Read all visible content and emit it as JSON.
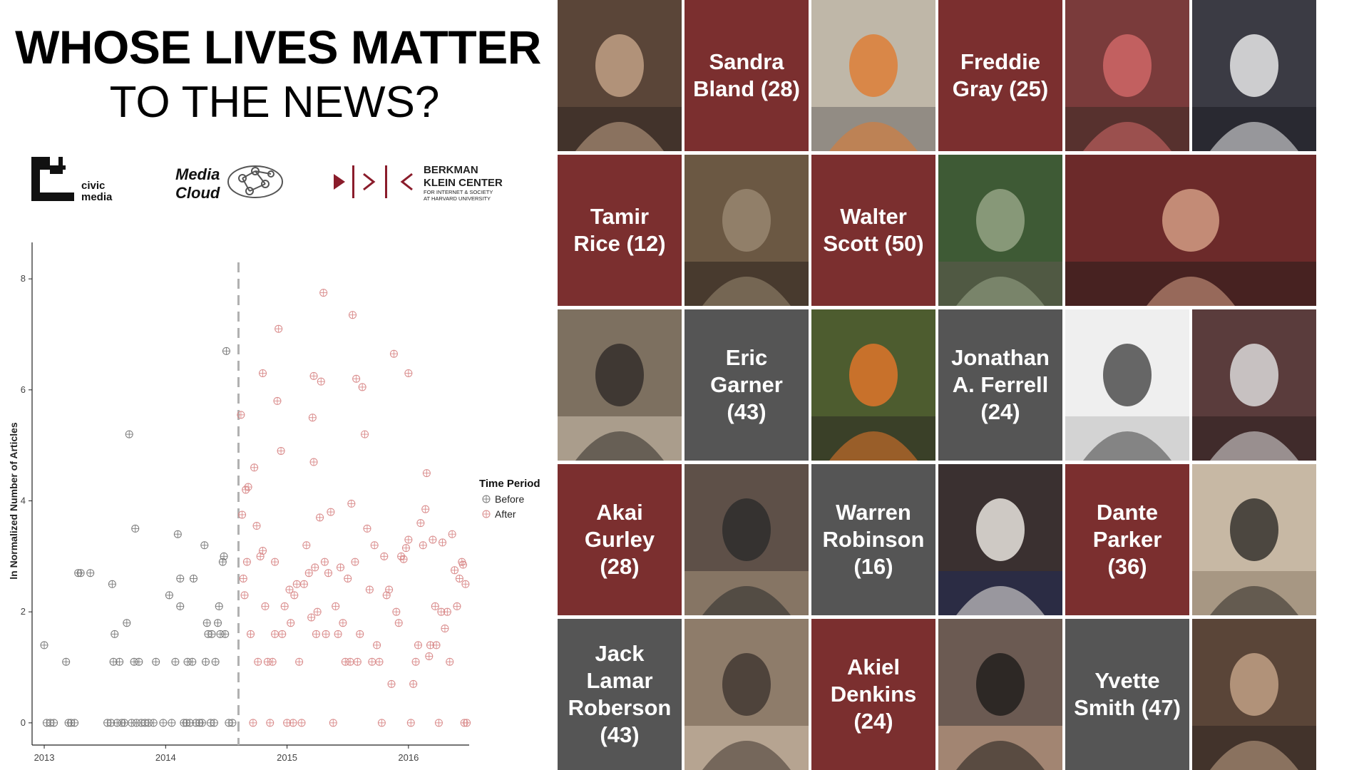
{
  "title": {
    "line1": "WHOSE LIVES MATTER",
    "line2": "TO THE NEWS?"
  },
  "logos": {
    "civic": {
      "line1": "civic",
      "line2": "media"
    },
    "mediacloud": {
      "line1": "Media",
      "line2": "Cloud"
    },
    "berkman": {
      "line1": "BERKMAN",
      "line2": "KLEIN CENTER",
      "line3": "FOR INTERNET & SOCIETY",
      "line4": "AT HARVARD UNIVERSITY"
    }
  },
  "colors": {
    "before": "#7a7a7a",
    "after": "#d98a8a",
    "maroon": "#7b2f2f",
    "gray": "#555555",
    "dashed": "#b0b0b0"
  },
  "chart_data": {
    "type": "scatter",
    "ylabel": "ln Normalized Number of Articles",
    "xlabel": "",
    "x_ticks": [
      "2013",
      "2014",
      "2015",
      "2016"
    ],
    "y_ticks": [
      "0",
      "2",
      "4",
      "6",
      "8"
    ],
    "xlim": [
      2012.9,
      2016.5
    ],
    "ylim": [
      -0.4,
      8.4
    ],
    "divider_x": 2014.6,
    "legend": {
      "title": "Time Period",
      "entries": [
        "Before",
        "After"
      ],
      "position": "right"
    },
    "series": [
      {
        "name": "Before",
        "color": "#7a7a7a",
        "points": [
          [
            2013.0,
            1.4
          ],
          [
            2013.02,
            0
          ],
          [
            2013.05,
            0
          ],
          [
            2013.08,
            0
          ],
          [
            2013.18,
            1.1
          ],
          [
            2013.2,
            0
          ],
          [
            2013.22,
            0
          ],
          [
            2013.25,
            0
          ],
          [
            2013.28,
            2.7
          ],
          [
            2013.3,
            2.7
          ],
          [
            2013.38,
            2.7
          ],
          [
            2013.52,
            0
          ],
          [
            2013.55,
            0
          ],
          [
            2013.56,
            2.5
          ],
          [
            2013.57,
            1.1
          ],
          [
            2013.58,
            1.6
          ],
          [
            2013.6,
            0
          ],
          [
            2013.62,
            1.1
          ],
          [
            2013.64,
            0
          ],
          [
            2013.66,
            0
          ],
          [
            2013.68,
            1.8
          ],
          [
            2013.7,
            5.2
          ],
          [
            2013.72,
            0
          ],
          [
            2013.74,
            1.1
          ],
          [
            2013.75,
            3.5
          ],
          [
            2013.76,
            0
          ],
          [
            2013.78,
            1.1
          ],
          [
            2013.8,
            0
          ],
          [
            2013.83,
            0
          ],
          [
            2013.86,
            0
          ],
          [
            2013.9,
            0
          ],
          [
            2013.92,
            1.1
          ],
          [
            2013.98,
            0
          ],
          [
            2014.03,
            2.3
          ],
          [
            2014.05,
            0
          ],
          [
            2014.08,
            1.1
          ],
          [
            2014.1,
            3.4
          ],
          [
            2014.12,
            2.1
          ],
          [
            2014.12,
            2.6
          ],
          [
            2014.15,
            0
          ],
          [
            2014.17,
            0
          ],
          [
            2014.18,
            1.1
          ],
          [
            2014.2,
            0
          ],
          [
            2014.22,
            1.1
          ],
          [
            2014.23,
            2.6
          ],
          [
            2014.25,
            0
          ],
          [
            2014.28,
            0
          ],
          [
            2014.3,
            0
          ],
          [
            2014.32,
            3.2
          ],
          [
            2014.33,
            1.1
          ],
          [
            2014.34,
            1.8
          ],
          [
            2014.35,
            1.6
          ],
          [
            2014.37,
            0
          ],
          [
            2014.38,
            1.6
          ],
          [
            2014.4,
            0
          ],
          [
            2014.41,
            1.1
          ],
          [
            2014.43,
            1.8
          ],
          [
            2014.44,
            2.1
          ],
          [
            2014.45,
            1.6
          ],
          [
            2014.47,
            2.9
          ],
          [
            2014.48,
            3.0
          ],
          [
            2014.49,
            1.6
          ],
          [
            2014.5,
            6.7
          ],
          [
            2014.52,
            0
          ],
          [
            2014.55,
            0
          ]
        ]
      },
      {
        "name": "After",
        "color": "#d98a8a",
        "points": [
          [
            2014.62,
            5.55
          ],
          [
            2014.63,
            3.75
          ],
          [
            2014.64,
            2.6
          ],
          [
            2014.65,
            2.3
          ],
          [
            2014.66,
            4.2
          ],
          [
            2014.67,
            2.9
          ],
          [
            2014.68,
            4.25
          ],
          [
            2014.7,
            1.6
          ],
          [
            2014.72,
            0
          ],
          [
            2014.73,
            4.6
          ],
          [
            2014.75,
            3.55
          ],
          [
            2014.76,
            1.1
          ],
          [
            2014.78,
            3.0
          ],
          [
            2014.8,
            3.1
          ],
          [
            2014.8,
            6.3
          ],
          [
            2014.82,
            2.1
          ],
          [
            2014.84,
            1.1
          ],
          [
            2014.86,
            0
          ],
          [
            2014.88,
            1.1
          ],
          [
            2014.9,
            1.6
          ],
          [
            2014.9,
            2.9
          ],
          [
            2014.92,
            5.8
          ],
          [
            2014.93,
            7.1
          ],
          [
            2014.95,
            4.9
          ],
          [
            2014.96,
            1.6
          ],
          [
            2014.98,
            2.1
          ],
          [
            2015.0,
            0
          ],
          [
            2015.02,
            2.4
          ],
          [
            2015.03,
            1.8
          ],
          [
            2015.05,
            0
          ],
          [
            2015.06,
            2.3
          ],
          [
            2015.08,
            2.5
          ],
          [
            2015.1,
            1.1
          ],
          [
            2015.12,
            0
          ],
          [
            2015.14,
            2.5
          ],
          [
            2015.16,
            3.2
          ],
          [
            2015.18,
            2.7
          ],
          [
            2015.2,
            1.9
          ],
          [
            2015.21,
            5.5
          ],
          [
            2015.22,
            6.25
          ],
          [
            2015.22,
            4.7
          ],
          [
            2015.23,
            2.8
          ],
          [
            2015.24,
            1.6
          ],
          [
            2015.25,
            2.0
          ],
          [
            2015.27,
            3.7
          ],
          [
            2015.28,
            6.15
          ],
          [
            2015.3,
            7.75
          ],
          [
            2015.31,
            2.9
          ],
          [
            2015.32,
            1.6
          ],
          [
            2015.34,
            2.7
          ],
          [
            2015.36,
            3.8
          ],
          [
            2015.38,
            0
          ],
          [
            2015.4,
            2.1
          ],
          [
            2015.42,
            1.6
          ],
          [
            2015.44,
            2.8
          ],
          [
            2015.46,
            1.8
          ],
          [
            2015.48,
            1.1
          ],
          [
            2015.5,
            2.6
          ],
          [
            2015.52,
            1.1
          ],
          [
            2015.53,
            3.95
          ],
          [
            2015.54,
            7.35
          ],
          [
            2015.56,
            2.9
          ],
          [
            2015.57,
            6.2
          ],
          [
            2015.58,
            1.1
          ],
          [
            2015.6,
            1.6
          ],
          [
            2015.62,
            6.05
          ],
          [
            2015.64,
            5.2
          ],
          [
            2015.66,
            3.5
          ],
          [
            2015.68,
            2.4
          ],
          [
            2015.7,
            1.1
          ],
          [
            2015.72,
            3.2
          ],
          [
            2015.74,
            1.4
          ],
          [
            2015.76,
            1.1
          ],
          [
            2015.78,
            0
          ],
          [
            2015.8,
            3.0
          ],
          [
            2015.82,
            2.3
          ],
          [
            2015.84,
            2.4
          ],
          [
            2015.86,
            0.7
          ],
          [
            2015.88,
            6.65
          ],
          [
            2015.9,
            2.0
          ],
          [
            2015.92,
            1.8
          ],
          [
            2015.94,
            3.0
          ],
          [
            2015.96,
            2.95
          ],
          [
            2015.98,
            3.15
          ],
          [
            2016.0,
            3.3
          ],
          [
            2016.0,
            6.3
          ],
          [
            2016.02,
            0
          ],
          [
            2016.04,
            0.7
          ],
          [
            2016.06,
            1.1
          ],
          [
            2016.08,
            1.4
          ],
          [
            2016.1,
            3.6
          ],
          [
            2016.12,
            3.2
          ],
          [
            2016.14,
            3.85
          ],
          [
            2016.15,
            4.5
          ],
          [
            2016.17,
            1.2
          ],
          [
            2016.18,
            1.4
          ],
          [
            2016.2,
            3.3
          ],
          [
            2016.22,
            2.1
          ],
          [
            2016.23,
            1.4
          ],
          [
            2016.25,
            0
          ],
          [
            2016.27,
            2.0
          ],
          [
            2016.28,
            3.25
          ],
          [
            2016.3,
            1.7
          ],
          [
            2016.32,
            2.0
          ],
          [
            2016.34,
            1.1
          ],
          [
            2016.36,
            3.4
          ],
          [
            2016.38,
            2.75
          ],
          [
            2016.4,
            2.1
          ],
          [
            2016.42,
            2.6
          ],
          [
            2016.44,
            2.9
          ],
          [
            2016.45,
            2.85
          ],
          [
            2016.46,
            0
          ],
          [
            2016.47,
            2.5
          ],
          [
            2016.48,
            0
          ]
        ]
      }
    ]
  },
  "tiles": [
    {
      "kind": "photo",
      "icon": "portrait-sandra-bland-photo"
    },
    {
      "kind": "name",
      "text": "Sandra\nBland (28)",
      "color": "maroon"
    },
    {
      "kind": "photo",
      "icon": "jail-hallway-photo"
    },
    {
      "kind": "name",
      "text": "Freddie\nGray (25)",
      "color": "maroon"
    },
    {
      "kind": "photo",
      "icon": "portrait-freddie-gray-photo"
    },
    {
      "kind": "photo",
      "icon": "police-arrest-photo"
    },
    {
      "kind": "name",
      "text": "Tamir\nRice (12)",
      "color": "maroon"
    },
    {
      "kind": "photo",
      "icon": "portrait-tamir-rice-photo"
    },
    {
      "kind": "name",
      "text": "Walter\nScott (50)",
      "color": "maroon"
    },
    {
      "kind": "photo",
      "icon": "portrait-walter-scott-photo"
    },
    {
      "kind": "photo",
      "icon": "shooting-video-still-photo",
      "span": 2
    },
    {
      "kind": "photo",
      "icon": "portrait-eric-garner-photo"
    },
    {
      "kind": "name",
      "text": "Eric\nGarner\n(43)",
      "color": "gray"
    },
    {
      "kind": "photo",
      "icon": "chokehold-photo"
    },
    {
      "kind": "name",
      "text": "Jonathan\nA. Ferrell\n(24)",
      "color": "gray"
    },
    {
      "kind": "photo",
      "icon": "portrait-jonathan-ferrell-photo"
    },
    {
      "kind": "photo",
      "icon": "body-diagram-photo"
    },
    {
      "kind": "name",
      "text": "Akai\nGurley\n(28)",
      "color": "maroon"
    },
    {
      "kind": "photo",
      "icon": "father-daughter-photo"
    },
    {
      "kind": "name",
      "text": "Warren\nRobinson\n(16)",
      "color": "gray"
    },
    {
      "kind": "photo",
      "icon": "portrait-warren-robinson-photo"
    },
    {
      "kind": "name",
      "text": "Dante\nParker\n(36)",
      "color": "maroon"
    },
    {
      "kind": "photo",
      "icon": "family-group-photo"
    },
    {
      "kind": "name",
      "text": "Jack\nLamar\nRoberson\n(43)",
      "color": "gray"
    },
    {
      "kind": "photo",
      "icon": "portrait-sailor-photo"
    },
    {
      "kind": "name",
      "text": "Akiel\nDenkins\n(24)",
      "color": "maroon"
    },
    {
      "kind": "photo",
      "icon": "father-baby-photo"
    },
    {
      "kind": "name",
      "text": "Yvette\nSmith (47)",
      "color": "gray"
    },
    {
      "kind": "photo",
      "icon": "two-women-selfie-photo"
    }
  ]
}
